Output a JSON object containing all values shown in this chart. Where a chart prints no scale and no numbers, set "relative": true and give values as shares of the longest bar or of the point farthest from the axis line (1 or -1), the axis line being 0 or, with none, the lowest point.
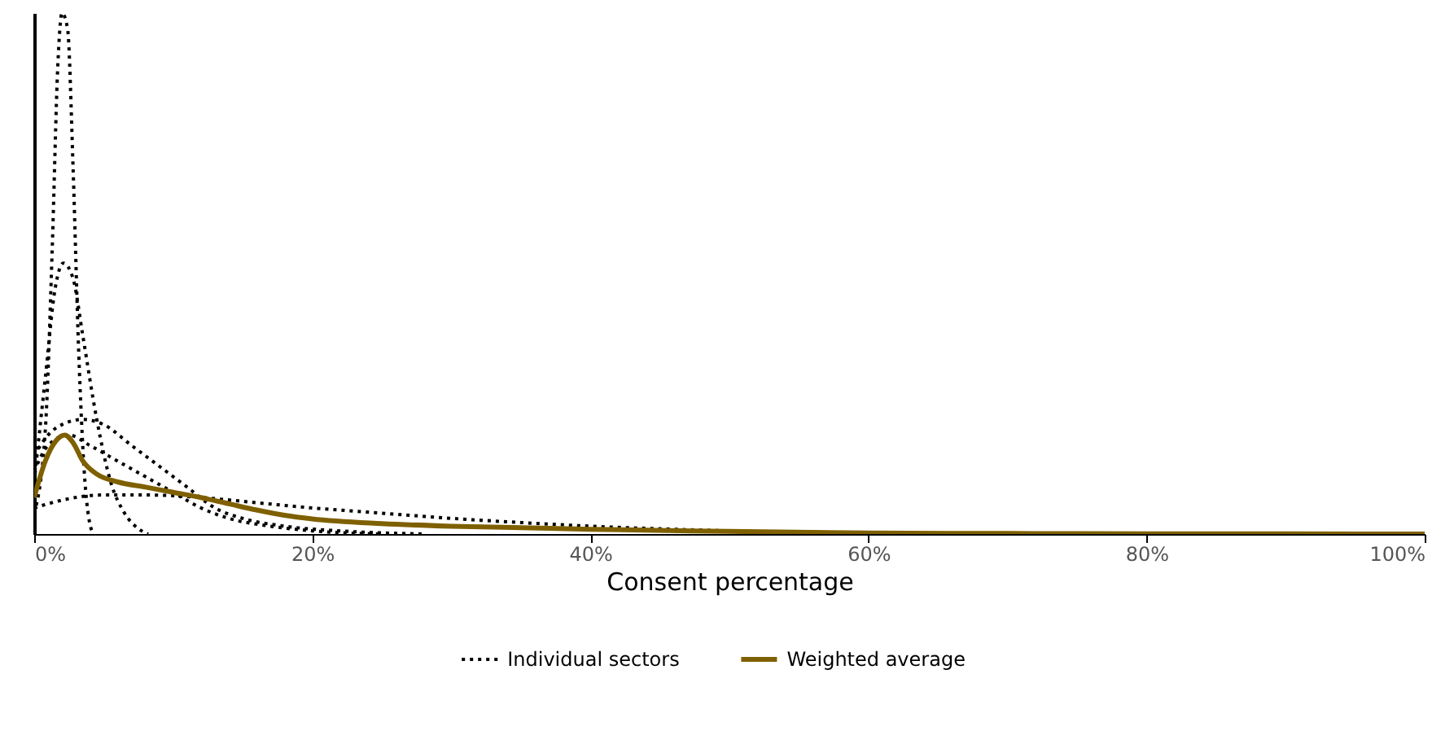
{
  "chart_data": {
    "type": "line",
    "relative": true,
    "xlabel": "Consent percentage",
    "xlim": [
      0,
      100
    ],
    "xticks": [
      {
        "value": 0,
        "label": "0%"
      },
      {
        "value": 20,
        "label": "20%"
      },
      {
        "value": 40,
        "label": "40%"
      },
      {
        "value": 60,
        "label": "60%"
      },
      {
        "value": 80,
        "label": "80%"
      },
      {
        "value": 100,
        "label": "100%"
      }
    ],
    "legend": "bottom",
    "grid": false,
    "series": [
      {
        "name": "Individual sectors",
        "color": "#000000",
        "line_style": "dotted",
        "x": [
          0,
          0.8,
          1.3,
          1.7,
          2.0,
          2.4,
          2.8,
          3.2,
          3.6,
          4.0,
          4.3
        ],
        "values": [
          0.04,
          0.2,
          0.55,
          0.9,
          1.0,
          0.97,
          0.7,
          0.35,
          0.12,
          0.02,
          0
        ]
      },
      {
        "color": "#000000",
        "line_style": "dotted",
        "x": [
          0,
          0.8,
          1.5,
          2.1,
          2.8,
          3.5,
          4.5,
          5.5,
          6.5,
          7.5,
          8.2
        ],
        "values": [
          0.1,
          0.3,
          0.47,
          0.52,
          0.49,
          0.38,
          0.22,
          0.1,
          0.04,
          0.01,
          0
        ]
      },
      {
        "color": "#000000",
        "line_style": "dotted",
        "x": [
          0,
          1,
          2,
          3.5,
          5,
          7,
          9,
          11,
          13,
          15,
          18,
          22,
          28
        ],
        "values": [
          0.15,
          0.19,
          0.21,
          0.22,
          0.21,
          0.17,
          0.13,
          0.09,
          0.05,
          0.03,
          0.015,
          0.006,
          0
        ]
      },
      {
        "color": "#000000",
        "line_style": "dotted",
        "x": [
          0,
          1,
          2.5,
          4,
          6,
          8,
          10,
          12,
          14,
          17,
          20,
          25
        ],
        "values": [
          0.12,
          0.17,
          0.19,
          0.17,
          0.14,
          0.11,
          0.08,
          0.05,
          0.03,
          0.015,
          0.006,
          0
        ]
      },
      {
        "color": "#000000",
        "line_style": "dotted",
        "x": [
          0,
          2,
          5,
          8,
          12,
          16,
          20,
          25,
          30,
          35,
          40,
          45,
          50,
          55,
          60,
          70
        ],
        "values": [
          0.05,
          0.065,
          0.075,
          0.075,
          0.07,
          0.06,
          0.05,
          0.04,
          0.03,
          0.022,
          0.015,
          0.01,
          0.006,
          0.003,
          0.001,
          0
        ]
      },
      {
        "name": "Weighted average",
        "color": "#7f6000",
        "line_style": "solid",
        "x": [
          0,
          0.8,
          1.6,
          2.2,
          2.8,
          3.5,
          4.5,
          6,
          8,
          10,
          12,
          14,
          16,
          18,
          20,
          25,
          30,
          35,
          40,
          50,
          60,
          70,
          80,
          90,
          100
        ],
        "values": [
          0.07,
          0.14,
          0.18,
          0.19,
          0.175,
          0.14,
          0.115,
          0.1,
          0.09,
          0.08,
          0.07,
          0.058,
          0.046,
          0.036,
          0.029,
          0.02,
          0.015,
          0.012,
          0.009,
          0.005,
          0.002,
          0.001,
          0.0005,
          0.0002,
          0
        ]
      }
    ]
  }
}
